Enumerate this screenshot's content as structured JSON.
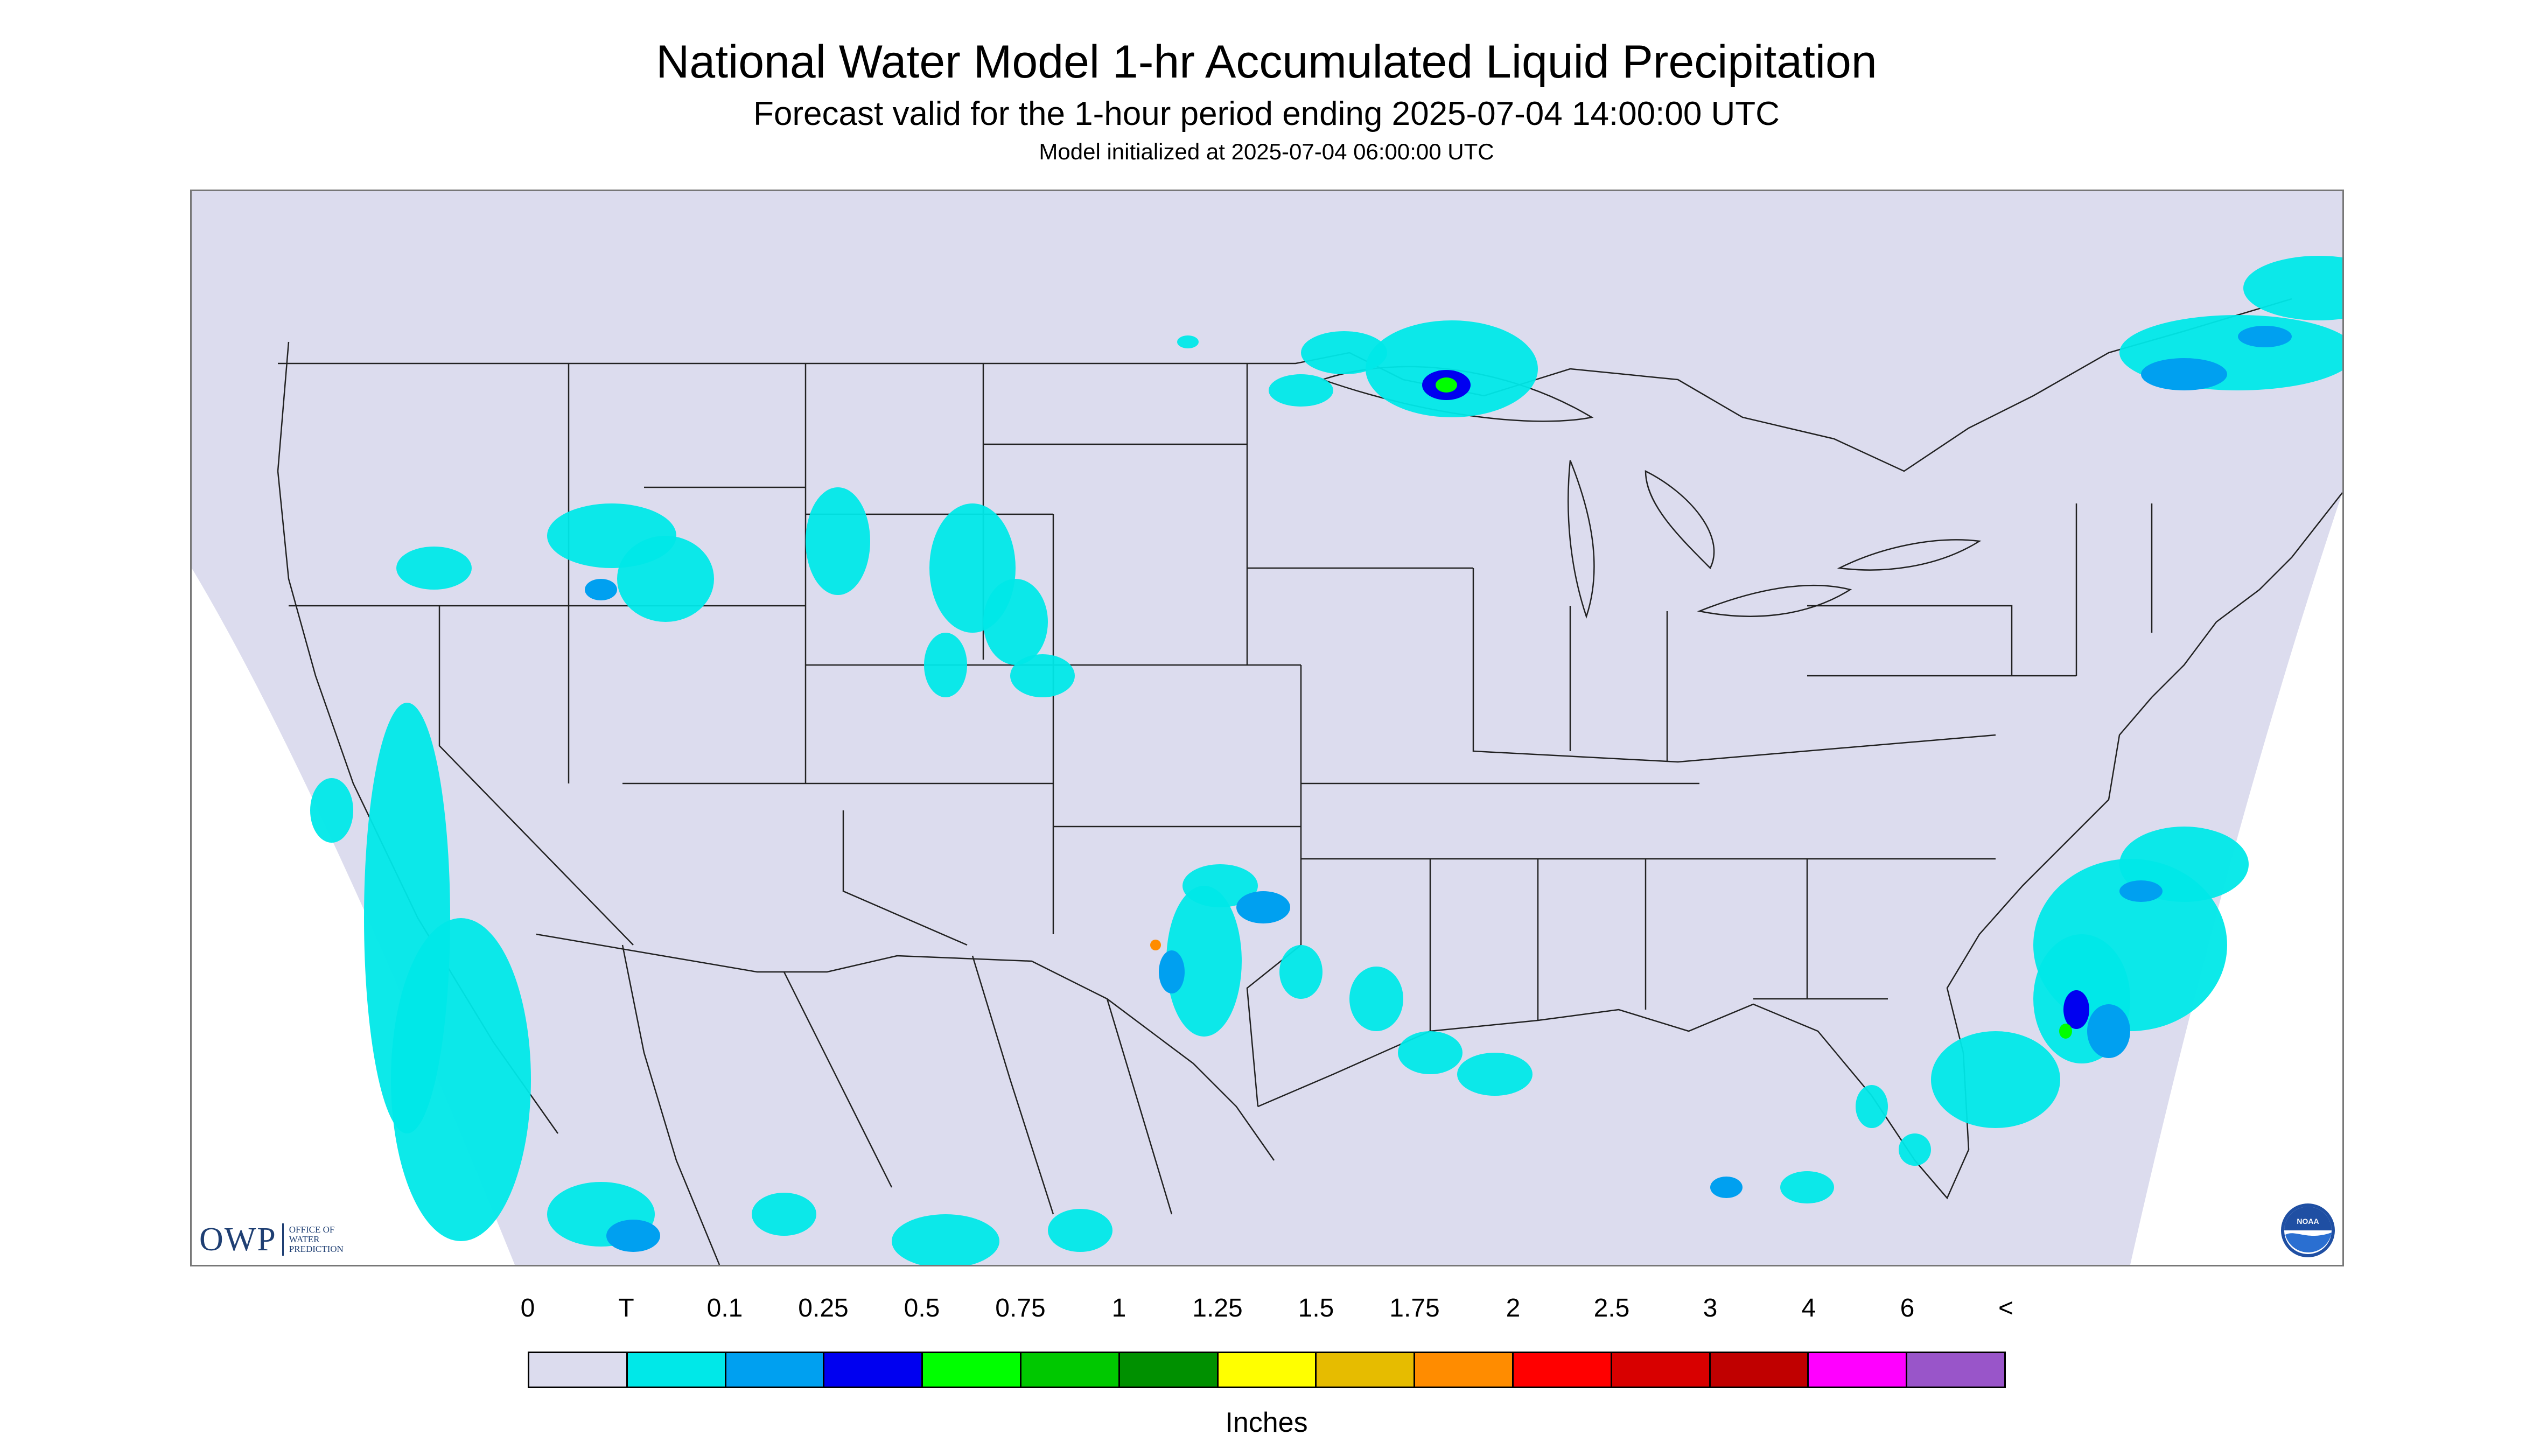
{
  "header": {
    "title": "National Water Model 1-hr Accumulated Liquid Precipitation",
    "subtitle": "Forecast valid for the 1-hour period ending 2025-07-04 14:00:00 UTC",
    "init_line": "Model initialized at 2025-07-04 06:00:00 UTC"
  },
  "logos": {
    "owp_mark": "OWP",
    "owp_line1": "OFFICE OF",
    "owp_line2": "WATER",
    "owp_line3": "PREDICTION",
    "noaa_text": "NOAA"
  },
  "map": {
    "domain_color": "#dcdcee",
    "outside_color": "#ffffff",
    "boundary_color": "#222222",
    "region": "CONUS"
  },
  "legend": {
    "labels": [
      "0",
      "T",
      "0.1",
      "0.25",
      "0.5",
      "0.75",
      "1",
      "1.25",
      "1.5",
      "1.75",
      "2",
      "2.5",
      "3",
      "4",
      "6",
      "<"
    ],
    "colors": [
      "#dcdcee",
      "#00e8e8",
      "#00a0f0",
      "#0000f0",
      "#00ff00",
      "#00c800",
      "#009000",
      "#ffff00",
      "#e6bc00",
      "#ff8c00",
      "#ff0000",
      "#d80000",
      "#c00000",
      "#ff00ff",
      "#9955c9"
    ],
    "unit": "Inches"
  }
}
